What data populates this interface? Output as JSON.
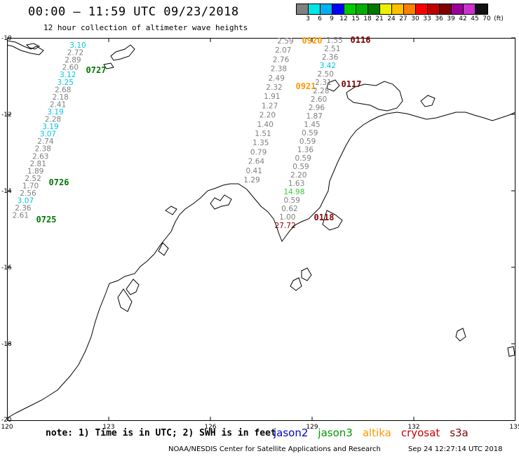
{
  "header": {
    "title": "00:00 – 11:59 UTC 09/23/2018",
    "subtitle": "12 hour collection of altimeter wave heights"
  },
  "colorbar": {
    "colors": [
      "#808080",
      "#00e5e5",
      "#00b0f0",
      "#0000ff",
      "#00cc00",
      "#00b000",
      "#007700",
      "#eeee00",
      "#ffc000",
      "#ff7f00",
      "#ff0000",
      "#c00000",
      "#800000",
      "#990099",
      "#cc33cc",
      "#111111"
    ],
    "labels": [
      "3",
      "6",
      "9",
      "12",
      "15",
      "18",
      "21",
      "24",
      "27",
      "30",
      "33",
      "36",
      "39",
      "42",
      "45",
      "70",
      "(ft)"
    ]
  },
  "axes": {
    "lat_labels": [
      "-10",
      "-12",
      "-14",
      "-16",
      "-18",
      "-20"
    ],
    "lon_labels": [
      "120",
      "123",
      "126",
      "129",
      "132",
      "135"
    ]
  },
  "tracks": [
    {
      "satellite": "jason3",
      "times": [
        {
          "text": "0727",
          "color": "#007700"
        },
        {
          "text": "0726",
          "color": "#007700"
        },
        {
          "text": "0725",
          "color": "#007700"
        }
      ],
      "points": [
        {
          "value": "3.10",
          "color": "#00c8e0"
        },
        {
          "value": "2.72",
          "color": "#808080"
        },
        {
          "value": "2.89",
          "color": "#808080"
        },
        {
          "value": "2.60",
          "color": "#808080"
        },
        {
          "value": "3.12",
          "color": "#00c8e0"
        },
        {
          "value": "3.25",
          "color": "#00c8e0"
        },
        {
          "value": "2.68",
          "color": "#808080"
        },
        {
          "value": "2.18",
          "color": "#808080"
        },
        {
          "value": "2.41",
          "color": "#808080"
        },
        {
          "value": "3.19",
          "color": "#00c8e0"
        },
        {
          "value": "2.28",
          "color": "#808080"
        },
        {
          "value": "3.19",
          "color": "#00c8e0"
        },
        {
          "value": "3.07",
          "color": "#00c8e0"
        },
        {
          "value": "2.74",
          "color": "#808080"
        },
        {
          "value": "2.38",
          "color": "#808080"
        },
        {
          "value": "2.63",
          "color": "#808080"
        },
        {
          "value": "2.81",
          "color": "#808080"
        },
        {
          "value": "1.89",
          "color": "#808080"
        },
        {
          "value": "2.52",
          "color": "#808080"
        },
        {
          "value": "1.70",
          "color": "#808080"
        },
        {
          "value": "2.56",
          "color": "#808080"
        },
        {
          "value": "3.07",
          "color": "#00c8e0"
        },
        {
          "value": "2.36",
          "color": "#808080"
        },
        {
          "value": "2.61",
          "color": "#808080"
        }
      ]
    },
    {
      "satellite": "altika",
      "times": [
        {
          "text": "0920",
          "color": "#ff9900"
        },
        {
          "text": "0921",
          "color": "#ff9900"
        }
      ],
      "points": [
        {
          "value": "2.59",
          "color": "#808080"
        },
        {
          "value": "2.07",
          "color": "#808080"
        },
        {
          "value": "2.76",
          "color": "#808080"
        },
        {
          "value": "2.38",
          "color": "#808080"
        },
        {
          "value": "2.49",
          "color": "#808080"
        },
        {
          "value": "2.32",
          "color": "#808080"
        },
        {
          "value": "1.91",
          "color": "#808080"
        },
        {
          "value": "1.27",
          "color": "#808080"
        },
        {
          "value": "2.20",
          "color": "#808080"
        },
        {
          "value": "1.40",
          "color": "#808080"
        },
        {
          "value": "1.51",
          "color": "#808080"
        },
        {
          "value": "1.35",
          "color": "#808080"
        },
        {
          "value": "0.79",
          "color": "#808080"
        },
        {
          "value": "2.64",
          "color": "#808080"
        },
        {
          "value": "0.41",
          "color": "#808080"
        },
        {
          "value": "1.29",
          "color": "#808080"
        }
      ]
    },
    {
      "satellite": "s3a",
      "times": [
        {
          "text": "0116",
          "color": "#800000"
        },
        {
          "text": "0117",
          "color": "#800000"
        },
        {
          "text": "0118",
          "color": "#800000"
        }
      ],
      "points": [
        {
          "value": "1.55",
          "color": "#808080"
        },
        {
          "value": "2.51",
          "color": "#808080"
        },
        {
          "value": "2.36",
          "color": "#808080"
        },
        {
          "value": "3.42",
          "color": "#00c8e0"
        },
        {
          "value": "2.50",
          "color": "#808080"
        },
        {
          "value": "2.31",
          "color": "#808080"
        },
        {
          "value": "2.28",
          "color": "#808080"
        },
        {
          "value": "2.60",
          "color": "#808080"
        },
        {
          "value": "2.96",
          "color": "#808080"
        },
        {
          "value": "1.87",
          "color": "#808080"
        },
        {
          "value": "1.45",
          "color": "#808080"
        },
        {
          "value": "0.59",
          "color": "#808080"
        },
        {
          "value": "0.59",
          "color": "#808080"
        },
        {
          "value": "1.36",
          "color": "#808080"
        },
        {
          "value": "0.59",
          "color": "#808080"
        },
        {
          "value": "0.59",
          "color": "#808080"
        },
        {
          "value": "2.20",
          "color": "#808080"
        },
        {
          "value": "1.63",
          "color": "#808080"
        },
        {
          "value": "14.98",
          "color": "#33cc33"
        },
        {
          "value": "0.59",
          "color": "#808080"
        },
        {
          "value": "0.62",
          "color": "#808080"
        },
        {
          "value": "1.00",
          "color": "#808080"
        },
        {
          "value": "27.72",
          "color": "#800000"
        }
      ]
    }
  ],
  "note": "note: 1) Time is in UTC; 2) SWH is in feet",
  "legend": [
    {
      "name": "jason2",
      "color": "#0000cc"
    },
    {
      "name": "jason3",
      "color": "#009900"
    },
    {
      "name": "altika",
      "color": "#ff9900"
    },
    {
      "name": "cryosat",
      "color": "#cc0000"
    },
    {
      "name": "s3a",
      "color": "#800000"
    }
  ],
  "footer": {
    "credit": "NOAA/NESDIS Center for Satellite Applications and Research",
    "timestamp": "Sep 24 12:27:14 UTC 2018"
  }
}
